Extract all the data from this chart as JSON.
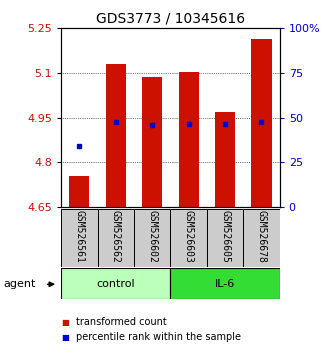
{
  "title": "GDS3773 / 10345616",
  "samples": [
    "GSM526561",
    "GSM526562",
    "GSM526602",
    "GSM526603",
    "GSM526605",
    "GSM526678"
  ],
  "bar_tops": [
    4.755,
    5.13,
    5.085,
    5.105,
    4.97,
    5.215
  ],
  "bar_bottom": 4.65,
  "blue_y": [
    4.855,
    4.935,
    4.925,
    4.928,
    4.928,
    4.935
  ],
  "ylim_left": [
    4.65,
    5.25
  ],
  "ylim_right": [
    0,
    100
  ],
  "yticks_left": [
    4.65,
    4.8,
    4.95,
    5.1,
    5.25
  ],
  "yticks_right": [
    0,
    25,
    50,
    75,
    100
  ],
  "ytick_labels_left": [
    "4.65",
    "4.8",
    "4.95",
    "5.1",
    "5.25"
  ],
  "ytick_labels_right": [
    "0",
    "25",
    "50",
    "75",
    "100%"
  ],
  "bar_color": "#cc1100",
  "blue_color": "#0000cc",
  "control_color": "#bbffbb",
  "il6_color": "#33dd33",
  "group_label_control": "control",
  "group_label_il6": "IL-6",
  "agent_label": "agent",
  "legend_red": "transformed count",
  "legend_blue": "percentile rank within the sample",
  "bar_width": 0.55,
  "sample_box_color": "#cccccc",
  "title_fontsize": 10,
  "tick_fontsize": 8,
  "sample_fontsize": 7,
  "group_fontsize": 8,
  "legend_fontsize": 7
}
